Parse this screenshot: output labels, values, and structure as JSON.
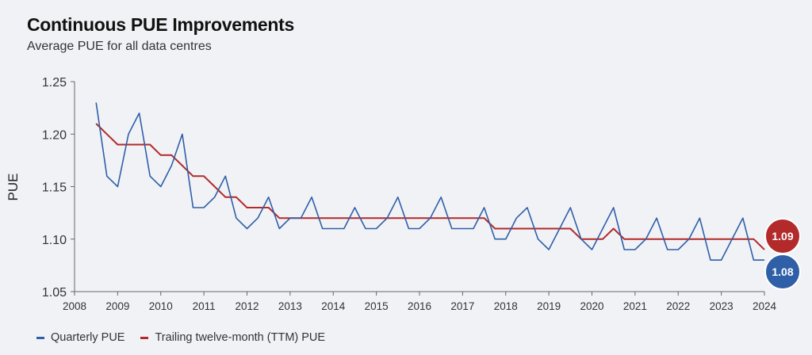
{
  "title": "Continuous PUE Improvements",
  "subtitle": "Average PUE for all data centres",
  "colors": {
    "quarterly": "#2f5fa7",
    "ttm": "#b22a2a",
    "background": "#f1f2f6"
  },
  "chart_data": {
    "type": "line",
    "ylabel": "PUE",
    "xlim": [
      2008,
      2024
    ],
    "ylim": [
      1.05,
      1.25
    ],
    "x_ticks": [
      "2008",
      "2009",
      "2010",
      "2011",
      "2012",
      "2013",
      "2014",
      "2015",
      "2016",
      "2017",
      "2018",
      "2019",
      "2020",
      "2021",
      "2022",
      "2023",
      "2024"
    ],
    "y_ticks": [
      "1.05",
      "1.10",
      "1.15",
      "1.20",
      "1.25"
    ],
    "grid": false,
    "legend_position": "bottom-left",
    "series": [
      {
        "name": "Quarterly PUE",
        "color": "#2f5fa7",
        "x": [
          2008.5,
          2008.75,
          2009,
          2009.25,
          2009.5,
          2009.75,
          2010,
          2010.25,
          2010.5,
          2010.75,
          2011,
          2011.25,
          2011.5,
          2011.75,
          2012,
          2012.25,
          2012.5,
          2012.75,
          2013,
          2013.25,
          2013.5,
          2013.75,
          2014,
          2014.25,
          2014.5,
          2014.75,
          2015,
          2015.25,
          2015.5,
          2015.75,
          2016,
          2016.25,
          2016.5,
          2016.75,
          2017,
          2017.25,
          2017.5,
          2017.75,
          2018,
          2018.25,
          2018.5,
          2018.75,
          2019,
          2019.25,
          2019.5,
          2019.75,
          2020,
          2020.25,
          2020.5,
          2020.75,
          2021,
          2021.25,
          2021.5,
          2021.75,
          2022,
          2022.25,
          2022.5,
          2022.75,
          2023,
          2023.25,
          2023.5,
          2023.75,
          2024
        ],
        "values": [
          1.23,
          1.16,
          1.15,
          1.2,
          1.22,
          1.16,
          1.15,
          1.17,
          1.2,
          1.13,
          1.13,
          1.14,
          1.16,
          1.12,
          1.11,
          1.12,
          1.14,
          1.11,
          1.12,
          1.12,
          1.14,
          1.11,
          1.11,
          1.11,
          1.13,
          1.11,
          1.11,
          1.12,
          1.14,
          1.11,
          1.11,
          1.12,
          1.14,
          1.11,
          1.11,
          1.11,
          1.13,
          1.1,
          1.1,
          1.12,
          1.13,
          1.1,
          1.09,
          1.11,
          1.13,
          1.1,
          1.09,
          1.11,
          1.13,
          1.09,
          1.09,
          1.1,
          1.12,
          1.09,
          1.09,
          1.1,
          1.12,
          1.08,
          1.08,
          1.1,
          1.12,
          1.08,
          1.08
        ]
      },
      {
        "name": "Trailing twelve-month (TTM) PUE",
        "color": "#b22a2a",
        "x": [
          2008.5,
          2008.75,
          2009,
          2009.25,
          2009.5,
          2009.75,
          2010,
          2010.25,
          2010.5,
          2010.75,
          2011,
          2011.25,
          2011.5,
          2011.75,
          2012,
          2012.25,
          2012.5,
          2012.75,
          2013,
          2013.25,
          2013.5,
          2013.75,
          2014,
          2014.25,
          2014.5,
          2014.75,
          2015,
          2015.25,
          2015.5,
          2015.75,
          2016,
          2016.25,
          2016.5,
          2016.75,
          2017,
          2017.25,
          2017.5,
          2017.75,
          2018,
          2018.25,
          2018.5,
          2018.75,
          2019,
          2019.25,
          2019.5,
          2019.75,
          2020,
          2020.25,
          2020.5,
          2020.75,
          2021,
          2021.25,
          2021.5,
          2021.75,
          2022,
          2022.25,
          2022.5,
          2022.75,
          2023,
          2023.25,
          2023.5,
          2023.75,
          2024
        ],
        "values": [
          1.21,
          1.2,
          1.19,
          1.19,
          1.19,
          1.19,
          1.18,
          1.18,
          1.17,
          1.16,
          1.16,
          1.15,
          1.14,
          1.14,
          1.13,
          1.13,
          1.13,
          1.12,
          1.12,
          1.12,
          1.12,
          1.12,
          1.12,
          1.12,
          1.12,
          1.12,
          1.12,
          1.12,
          1.12,
          1.12,
          1.12,
          1.12,
          1.12,
          1.12,
          1.12,
          1.12,
          1.12,
          1.11,
          1.11,
          1.11,
          1.11,
          1.11,
          1.11,
          1.11,
          1.11,
          1.1,
          1.1,
          1.1,
          1.11,
          1.1,
          1.1,
          1.1,
          1.1,
          1.1,
          1.1,
          1.1,
          1.1,
          1.1,
          1.1,
          1.1,
          1.1,
          1.1,
          1.09
        ]
      }
    ],
    "end_labels": [
      {
        "series": "Trailing twelve-month (TTM) PUE",
        "text": "1.09",
        "color": "#b22a2a"
      },
      {
        "series": "Quarterly PUE",
        "text": "1.08",
        "color": "#2f5fa7"
      }
    ]
  },
  "legend": {
    "items": [
      {
        "label": "Quarterly PUE",
        "color": "#2f5fa7"
      },
      {
        "label": "Trailing twelve-month (TTM) PUE",
        "color": "#b22a2a"
      }
    ]
  }
}
